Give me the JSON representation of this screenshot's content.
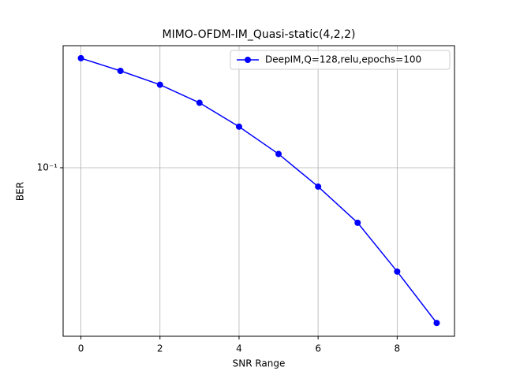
{
  "chart_data": {
    "type": "line",
    "title": "MIMO-OFDM-IM_Quasi-static(4,2,2)",
    "xlabel": "SNR Range",
    "ylabel": "BER",
    "x": [
      0,
      1,
      2,
      3,
      4,
      5,
      6,
      7,
      8,
      9
    ],
    "series": [
      {
        "name": "DeepIM,Q=128,relu,epochs=100",
        "color": "#0000ff",
        "values": [
          0.214,
          0.196,
          0.178,
          0.157,
          0.133,
          0.11,
          0.0877,
          0.0682,
          0.0486,
          0.034
        ]
      }
    ],
    "xlim": [
      -0.45,
      9.45
    ],
    "ylim": [
      0.031,
      0.2335
    ],
    "xticks": [
      0,
      2,
      4,
      6,
      8
    ],
    "yticks": [
      {
        "value": 0.1,
        "label": "10⁻¹"
      }
    ],
    "log_y": true,
    "grid": true,
    "legend": "upper right"
  }
}
